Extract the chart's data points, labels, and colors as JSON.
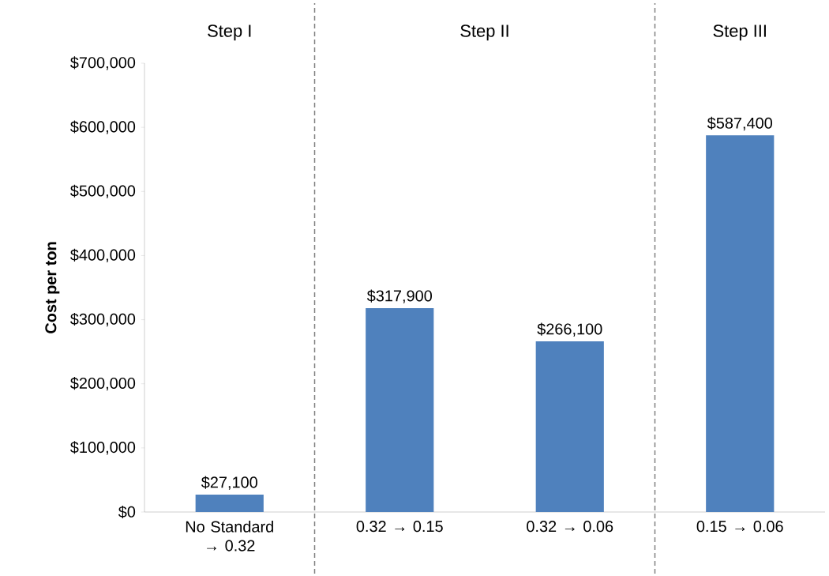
{
  "chart_data": {
    "type": "bar",
    "ylabel": "Cost per ton",
    "categories": [
      "No Standard → 0.32",
      "0.32 → 0.15",
      "0.32 → 0.06",
      "0.15 → 0.06"
    ],
    "values": [
      27100,
      317900,
      266100,
      587400
    ],
    "color": "#4f81bd",
    "value_labels": [
      "$27,100",
      "$317,900",
      "$266,100",
      "$587,400"
    ],
    "ylim": [
      0,
      700000
    ],
    "yticks": [
      {
        "value": 0,
        "label": "$0"
      },
      {
        "value": 100000,
        "label": "$100,000"
      },
      {
        "value": 200000,
        "label": "$200,000"
      },
      {
        "value": 300000,
        "label": "$300,000"
      },
      {
        "value": 400000,
        "label": "$400,000"
      },
      {
        "value": 500000,
        "label": "$500,000"
      },
      {
        "value": 600000,
        "label": "$600,000"
      },
      {
        "value": 700000,
        "label": "$700,000"
      }
    ],
    "annotations": [
      "Step I",
      "Step II",
      "Step III"
    ]
  }
}
